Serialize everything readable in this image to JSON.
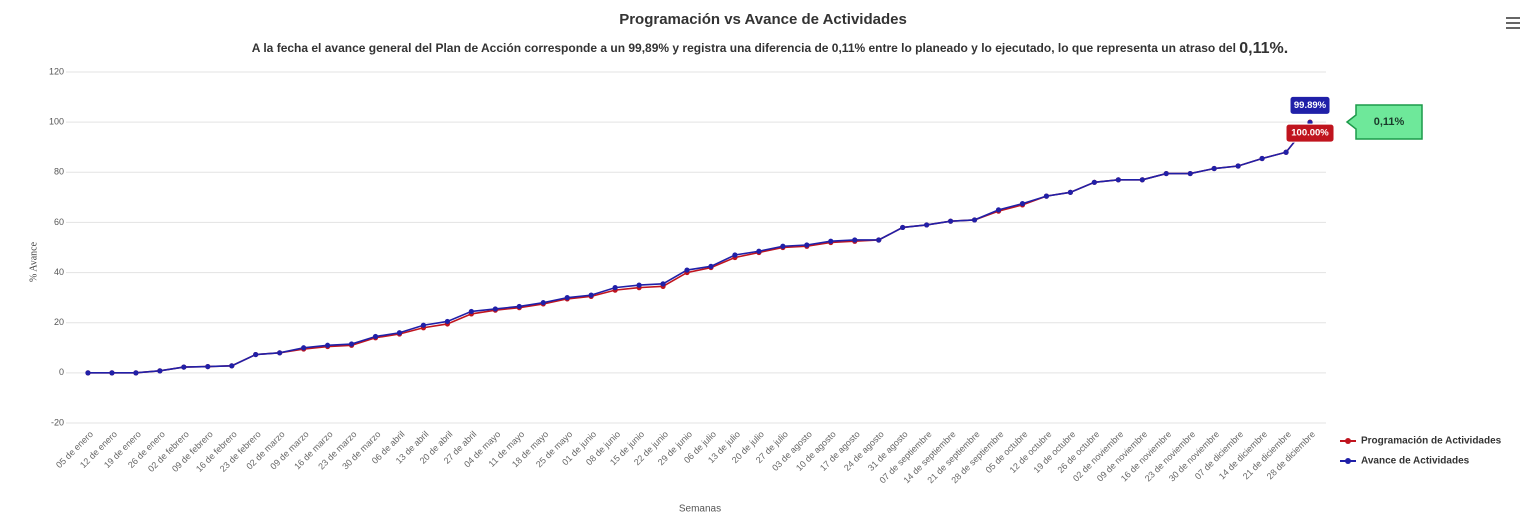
{
  "chart_data": {
    "type": "line",
    "title": "Programación vs Avance de Actividades",
    "subtitle": "A la fecha el avance general del Plan de Acción corresponde a un 99,89% y registra una diferencia de 0,11% entre lo planeado y lo ejecutado, lo que representa un atraso del",
    "subtitle_emphasis": "0,11%.",
    "y_label": "% Avance",
    "x_label": "Semanas",
    "categories": [
      "05 de enero",
      "12 de enero",
      "19 de enero",
      "26 de enero",
      "02 de febrero",
      "09 de febrero",
      "16 de febrero",
      "23 de febrero",
      "02 de marzo",
      "09 de marzo",
      "16 de marzo",
      "23 de marzo",
      "30 de marzo",
      "06 de abril",
      "13 de abril",
      "20 de abril",
      "27 de abril",
      "04 de mayo",
      "11 de mayo",
      "18 de mayo",
      "25 de mayo",
      "01 de junio",
      "08 de junio",
      "15 de junio",
      "22 de junio",
      "29 de junio",
      "06 de julio",
      "13 de julio",
      "20 de julio",
      "27 de julio",
      "03 de agosto",
      "10 de agosto",
      "17 de agosto",
      "24 de agosto",
      "31 de agosto",
      "07 de septiembre",
      "14 de septiembre",
      "21 de septiembre",
      "28 de septiembre",
      "05 de octubre",
      "12 de octubre",
      "19 de octubre",
      "26 de octubre",
      "02 de noviembre",
      "09 de noviembre",
      "16 de noviembre",
      "23 de noviembre",
      "30 de noviembre",
      "07 de diciembre",
      "14 de diciembre",
      "21 de diciembre",
      "28 de diciembre"
    ],
    "series": [
      {
        "name": "Programación de Actividades",
        "color": "#c0141e",
        "values": [
          0,
          0,
          0,
          0.8,
          2.3,
          2.5,
          2.8,
          7.3,
          8,
          9.5,
          10.5,
          11,
          14,
          15.5,
          18,
          19.5,
          23.5,
          25,
          26,
          27.5,
          29.5,
          30.5,
          33,
          34,
          34.5,
          40,
          42,
          46,
          48,
          50,
          50.5,
          52,
          52.5,
          53,
          58,
          59,
          60.5,
          61,
          64.5,
          67,
          70.5,
          72,
          76,
          77,
          77,
          79.5,
          79.5,
          81.5,
          82.5,
          85.5,
          88,
          100
        ],
        "value_labels": [
          null,
          null,
          null,
          null,
          null,
          null,
          null,
          null,
          null,
          null,
          null,
          null,
          null,
          null,
          null,
          null,
          null,
          null,
          null,
          null,
          null,
          null,
          null,
          null,
          null,
          null,
          null,
          null,
          null,
          null,
          null,
          null,
          null,
          null,
          null,
          null,
          null,
          null,
          null,
          null,
          null,
          null,
          null,
          null,
          null,
          null,
          null,
          null,
          null,
          null,
          null,
          "100.00%"
        ]
      },
      {
        "name": "Avance de Actividades",
        "color": "#2020a8",
        "values": [
          0,
          0,
          0,
          0.8,
          2.3,
          2.5,
          2.8,
          7.3,
          8,
          10,
          11,
          11.5,
          14.5,
          16,
          19,
          20.5,
          24.5,
          25.5,
          26.5,
          28,
          30,
          31,
          34,
          35,
          35.5,
          41,
          42.5,
          47,
          48.5,
          50.5,
          51,
          52.5,
          53,
          53,
          58,
          59,
          60.5,
          61,
          65,
          67.5,
          70.5,
          72,
          76,
          77,
          77,
          79.5,
          79.5,
          81.5,
          82.5,
          85.5,
          88,
          99.89
        ],
        "value_labels": [
          null,
          null,
          null,
          null,
          null,
          null,
          null,
          null,
          null,
          null,
          null,
          null,
          null,
          null,
          null,
          null,
          null,
          null,
          null,
          null,
          null,
          null,
          null,
          null,
          null,
          null,
          null,
          null,
          null,
          null,
          null,
          null,
          null,
          null,
          null,
          null,
          null,
          null,
          null,
          null,
          null,
          null,
          null,
          null,
          null,
          null,
          null,
          null,
          null,
          null,
          null,
          "99.89%"
        ]
      }
    ],
    "annotation": "0,11%",
    "ylim": [
      -20,
      120
    ],
    "yticks": [
      -20,
      0,
      20,
      40,
      60,
      80,
      100,
      120
    ],
    "grid": true,
    "legend": "bottom-right"
  }
}
